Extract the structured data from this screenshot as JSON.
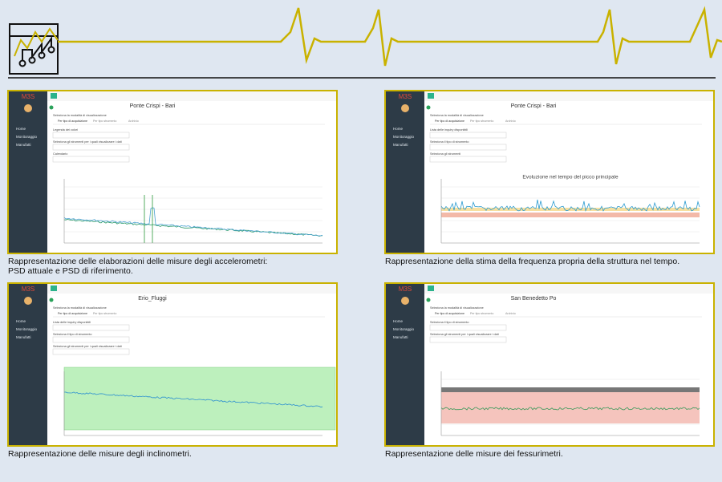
{
  "panels": [
    {
      "logo": "M3S",
      "title": "Ponte Crispi - Bari",
      "menu": [
        "Home",
        "Monitoraggio",
        "Manufatti"
      ],
      "tabs": [
        "Per tipo di acquisizione",
        "Per tipo strumento",
        "Archivio"
      ],
      "labels": [
        "Seleziona la modalità di visualizzazione",
        "Legenda dei colori",
        "Seleziona gli strumenti per i quali visualizzare i dati",
        "Calendario"
      ],
      "chart_title": null,
      "chart": "psd",
      "caption": [
        "Rappresentazione delle elaborazioni delle misure degli accelerometri:",
        "PSD attuale e PSD di riferimento."
      ]
    },
    {
      "logo": "M3S",
      "title": "Ponte Crispi - Bari",
      "menu": [
        "Home",
        "Monitoraggio",
        "Manufatti"
      ],
      "tabs": [
        "Per tipo di acquisizione",
        "Per tipo strumento",
        "Archivio"
      ],
      "labels": [
        "Seleziona la modalità di visualizzazione",
        "Lista delle inquiry disponibili",
        "Seleziona il tipo di strumento",
        "Seleziona gli strumenti"
      ],
      "chart_title": "Evoluzione nel tempo del picco principale",
      "chart": "freq",
      "caption": [
        "Rappresentazione della stima della frequenza propria della struttura nel tempo."
      ]
    },
    {
      "logo": "M3S",
      "title": "Erio_Fluggi",
      "menu": [
        "Home",
        "Monitoraggio",
        "Manufatti"
      ],
      "tabs": [
        "Per tipo di acquisizione",
        "Per tipo strumento"
      ],
      "labels": [
        "Seleziona la modalità di visualizzazione",
        "Lista delle inquiry disponibili",
        "Seleziona il tipo di strumento",
        "Seleziona gli strumenti per i quali visualizzare i dati"
      ],
      "chart_title": null,
      "chart": "incl",
      "caption": [
        "Rappresentazione delle misure degli inclinometri."
      ]
    },
    {
      "logo": "M3S",
      "title": "San Benedetto Po",
      "menu": [
        "Home",
        "Monitoraggio",
        "Manufatti"
      ],
      "tabs": [
        "Per tipo di acquisizione",
        "Per tipo strumento",
        "Archivio"
      ],
      "labels": [
        "Seleziona la modalità di visualizzazione",
        "Seleziona il tipo di strumento",
        "Seleziona gli strumenti per i quali visualizzare i dati"
      ],
      "chart_title": null,
      "chart": "fess",
      "caption": [
        "Rappresentazione delle misure dei fessurimetri."
      ]
    }
  ]
}
